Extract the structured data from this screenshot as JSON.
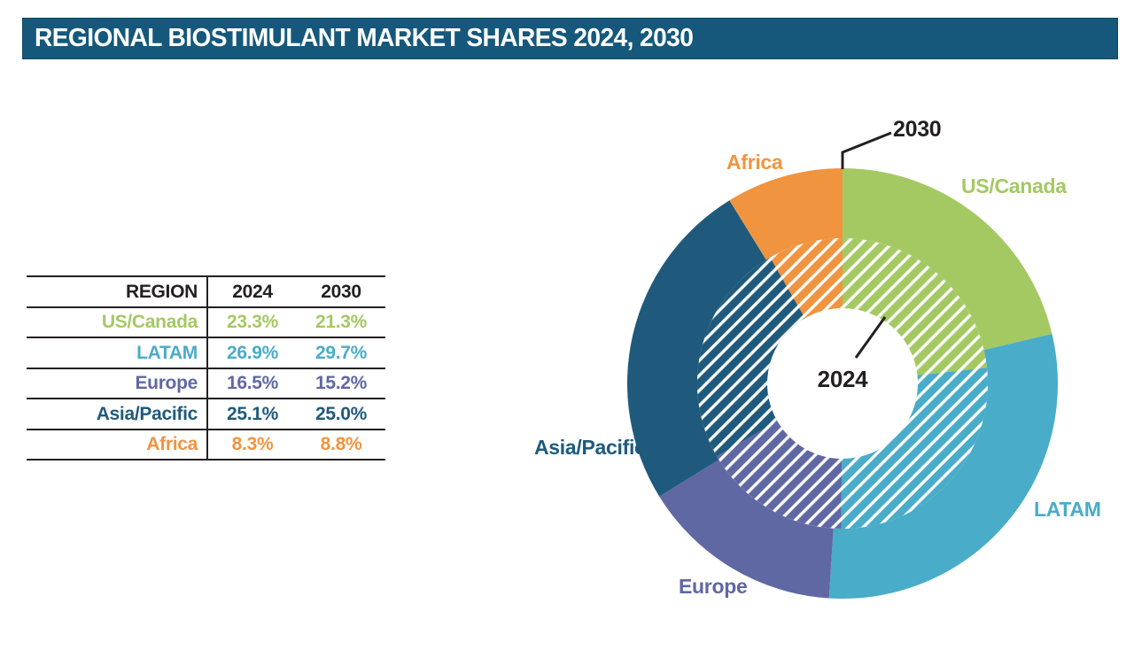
{
  "title": "REGIONAL BIOSTIMULANT MARKET SHARES 2024, 2030",
  "colors": {
    "header_bar": "#15587B",
    "us_canada": "#A4C963",
    "latam": "#49ACC9",
    "europe": "#5F68A3",
    "asia_pacific": "#1F5A7C",
    "africa": "#F0943F",
    "ink": "#231F20",
    "hatch": "#FFFFFF"
  },
  "table": {
    "headers": [
      "REGION",
      "2024",
      "2030"
    ],
    "rows": [
      {
        "region": "US/Canada",
        "v2024": "23.3%",
        "v2030": "21.3%",
        "color": "#A4C963"
      },
      {
        "region": "LATAM",
        "v2024": "26.9%",
        "v2030": "29.7%",
        "color": "#49ACC9"
      },
      {
        "region": "Europe",
        "v2024": "16.5%",
        "v2030": "15.2%",
        "color": "#5F68A3"
      },
      {
        "region": "Asia/Pacific",
        "v2024": "25.1%",
        "v2030": "25.0%",
        "color": "#1F5A7C"
      },
      {
        "region": "Africa",
        "v2024": "8.3%",
        "v2030": "8.8%",
        "color": "#F0943F"
      }
    ]
  },
  "chart_data": {
    "type": "pie",
    "subtype": "concentric-double-donut",
    "title": "Regional biostimulant market shares 2024, 2030",
    "categories": [
      "US/Canada",
      "LATAM",
      "Europe",
      "Asia/Pacific",
      "Africa"
    ],
    "series": [
      {
        "name": "2030",
        "ring": "outer",
        "hatched": false,
        "values": [
          21.3,
          29.7,
          15.2,
          25.0,
          8.8
        ]
      },
      {
        "name": "2024",
        "ring": "inner",
        "hatched": true,
        "values": [
          23.3,
          26.9,
          16.5,
          25.1,
          8.3
        ]
      }
    ],
    "colors": [
      "#A4C963",
      "#49ACC9",
      "#5F68A3",
      "#1F5A7C",
      "#F0943F"
    ],
    "start_angle_deg": 0,
    "direction": "clockwise",
    "inner_ring_center_label": "2024",
    "outer_ring_callout_label": "2030",
    "legend_position": "labels-around-ring"
  },
  "chart_labels": {
    "y2030": "2030",
    "y2024": "2024",
    "africa": "Africa",
    "us_canada": "US/Canada",
    "latam": "LATAM",
    "europe": "Europe",
    "asia_pacific": "Asia/Pacific"
  }
}
